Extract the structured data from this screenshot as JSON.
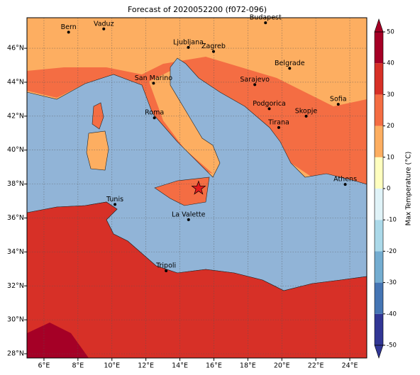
{
  "title": "Forecast of 2020052200 (f072-096)",
  "lonlim": [
    5,
    25
  ],
  "latlim": [
    27.75,
    47.8
  ],
  "lon_ticks": [
    {
      "value": 6,
      "label": "6°E"
    },
    {
      "value": 8,
      "label": "8°E"
    },
    {
      "value": 10,
      "label": "10°E"
    },
    {
      "value": 12,
      "label": "12°E"
    },
    {
      "value": 14,
      "label": "14°E"
    },
    {
      "value": 16,
      "label": "16°E"
    },
    {
      "value": 18,
      "label": "18°E"
    },
    {
      "value": 20,
      "label": "20°E"
    },
    {
      "value": 22,
      "label": "22°E"
    },
    {
      "value": 24,
      "label": "24°E"
    }
  ],
  "lat_ticks": [
    {
      "value": 28,
      "label": "28°N"
    },
    {
      "value": 30,
      "label": "30°N"
    },
    {
      "value": 32,
      "label": "32°N"
    },
    {
      "value": 34,
      "label": "34°N"
    },
    {
      "value": 36,
      "label": "36°N"
    },
    {
      "value": 38,
      "label": "38°N"
    },
    {
      "value": 40,
      "label": "40°N"
    },
    {
      "value": 42,
      "label": "42°N"
    },
    {
      "value": 44,
      "label": "44°N"
    },
    {
      "value": 46,
      "label": "46°N"
    }
  ],
  "cities": [
    {
      "name": "Bern",
      "lon": 7.45,
      "lat": 46.95
    },
    {
      "name": "Vaduz",
      "lon": 9.52,
      "lat": 47.14
    },
    {
      "name": "Budapest",
      "lon": 19.04,
      "lat": 47.5
    },
    {
      "name": "Ljubljana",
      "lon": 14.5,
      "lat": 46.05
    },
    {
      "name": "Zagreb",
      "lon": 15.98,
      "lat": 45.81
    },
    {
      "name": "Belgrade",
      "lon": 20.46,
      "lat": 44.82
    },
    {
      "name": "San Marino",
      "lon": 12.45,
      "lat": 43.94
    },
    {
      "name": "Sarajevo",
      "lon": 18.41,
      "lat": 43.86
    },
    {
      "name": "Sofia",
      "lon": 23.32,
      "lat": 42.7
    },
    {
      "name": "Podgorica",
      "lon": 19.26,
      "lat": 42.44
    },
    {
      "name": "Skopje",
      "lon": 21.43,
      "lat": 42.0
    },
    {
      "name": "Roma",
      "lon": 12.5,
      "lat": 41.9
    },
    {
      "name": "Tirana",
      "lon": 19.82,
      "lat": 41.33
    },
    {
      "name": "Athens",
      "lon": 23.73,
      "lat": 37.98
    },
    {
      "name": "Tunis",
      "lon": 10.18,
      "lat": 36.8
    },
    {
      "name": "La Valette",
      "lon": 14.51,
      "lat": 35.9
    },
    {
      "name": "Tripoli",
      "lon": 13.19,
      "lat": 32.89
    }
  ],
  "marker": {
    "lon": 15.1,
    "lat": 37.75,
    "color": "#e31a1c"
  },
  "colorbar": {
    "label": "Max Temperature (°C)",
    "ticks": [
      -50,
      -40,
      -30,
      -20,
      -10,
      0,
      10,
      20,
      30,
      40,
      50
    ],
    "colors": [
      "#313695",
      "#4575b4",
      "#74add1",
      "#abd9e9",
      "#e0f3f8",
      "#ffffbf",
      "#fdae61",
      "#f46d43",
      "#d73027",
      "#a50026"
    ]
  }
}
